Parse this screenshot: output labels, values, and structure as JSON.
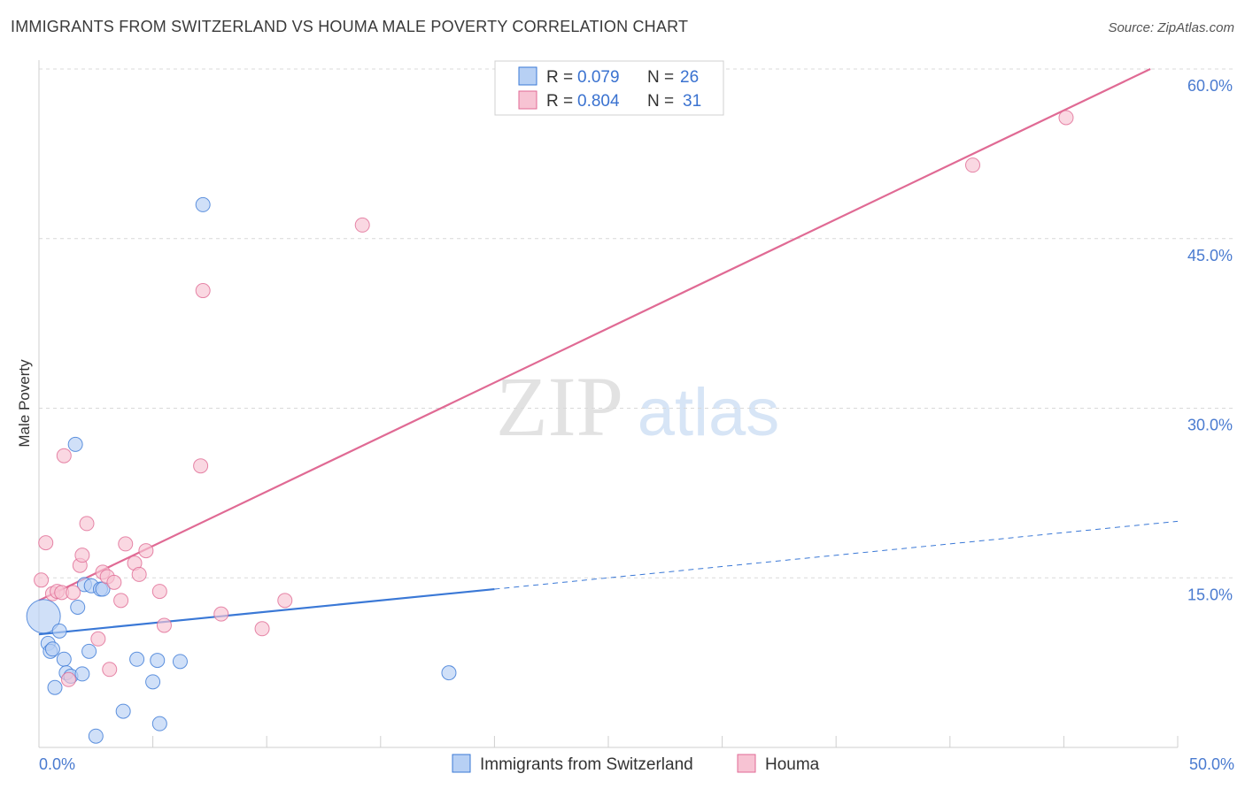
{
  "header": {
    "title": "IMMIGRANTS FROM SWITZERLAND VS HOUMA MALE POVERTY CORRELATION CHART",
    "source": "Source: ZipAtlas.com"
  },
  "watermark": {
    "zip": "ZIP",
    "atlas": "atlas"
  },
  "legend_top": {
    "entries": [
      {
        "r_label": "R = ",
        "r_value": "0.079",
        "n_label": "N = ",
        "n_value": "26"
      },
      {
        "r_label": "R = ",
        "r_value": "0.804",
        "n_label": "N = ",
        "n_value": "31"
      }
    ]
  },
  "colors": {
    "blue": "#3a78d6",
    "blue_fill": "#b7d0f4",
    "pink": "#e06a94",
    "pink_fill": "#f7c3d3",
    "grid": "#d8d8d8",
    "axis_text": "#4a7bd0"
  },
  "chart_data": {
    "type": "scatter",
    "title": "IMMIGRANTS FROM SWITZERLAND VS HOUMA MALE POVERTY CORRELATION CHART",
    "xlabel": "",
    "ylabel": "Male Poverty",
    "xlim": [
      0,
      50
    ],
    "ylim": [
      0,
      60
    ],
    "x_tick_labels": [
      "0.0%",
      "50.0%"
    ],
    "y_ticks": [
      15,
      30,
      45,
      60
    ],
    "y_tick_labels": [
      "15.0%",
      "30.0%",
      "45.0%",
      "60.0%"
    ],
    "series": [
      {
        "name": "Immigrants from Switzerland",
        "color": "#3a78d6",
        "points": [
          [
            0.2,
            11.6
          ],
          [
            0.4,
            9.2
          ],
          [
            0.5,
            8.5
          ],
          [
            0.6,
            8.7
          ],
          [
            0.7,
            5.3
          ],
          [
            0.9,
            10.3
          ],
          [
            1.1,
            7.8
          ],
          [
            1.2,
            6.6
          ],
          [
            1.4,
            6.3
          ],
          [
            1.7,
            12.4
          ],
          [
            1.6,
            26.8
          ],
          [
            1.9,
            6.5
          ],
          [
            2.0,
            14.4
          ],
          [
            2.2,
            8.5
          ],
          [
            2.3,
            14.3
          ],
          [
            2.5,
            1.0
          ],
          [
            2.7,
            14.0
          ],
          [
            2.8,
            14.0
          ],
          [
            3.7,
            3.2
          ],
          [
            4.3,
            7.8
          ],
          [
            5.0,
            5.8
          ],
          [
            5.2,
            7.7
          ],
          [
            5.3,
            2.1
          ],
          [
            6.2,
            7.6
          ],
          [
            7.2,
            48.0
          ],
          [
            18.0,
            6.6
          ]
        ],
        "trend": {
          "x0": 0,
          "y0": 10.0,
          "x_solid_end": 20,
          "x1": 50,
          "y1": 20.0
        }
      },
      {
        "name": "Houma",
        "color": "#e06a94",
        "points": [
          [
            0.1,
            14.8
          ],
          [
            0.3,
            18.1
          ],
          [
            0.6,
            13.6
          ],
          [
            0.8,
            13.8
          ],
          [
            1.0,
            13.7
          ],
          [
            1.1,
            25.8
          ],
          [
            1.3,
            6.0
          ],
          [
            1.5,
            13.7
          ],
          [
            1.8,
            16.1
          ],
          [
            1.9,
            17.0
          ],
          [
            2.1,
            19.8
          ],
          [
            2.6,
            9.6
          ],
          [
            2.8,
            15.5
          ],
          [
            3.0,
            15.1
          ],
          [
            3.1,
            6.9
          ],
          [
            3.3,
            14.6
          ],
          [
            3.6,
            13.0
          ],
          [
            3.8,
            18.0
          ],
          [
            4.2,
            16.3
          ],
          [
            4.4,
            15.3
          ],
          [
            4.7,
            17.4
          ],
          [
            5.3,
            13.8
          ],
          [
            5.5,
            10.8
          ],
          [
            7.1,
            24.9
          ],
          [
            7.2,
            40.4
          ],
          [
            8.0,
            11.8
          ],
          [
            9.8,
            10.5
          ],
          [
            10.8,
            13.0
          ],
          [
            14.2,
            46.2
          ],
          [
            41.0,
            51.5
          ],
          [
            45.1,
            55.7
          ]
        ],
        "trend": {
          "x0": 0,
          "y0": 13.0,
          "x1": 48.8,
          "y1": 60.0
        }
      }
    ]
  },
  "legend_bottom": {
    "items": [
      "Immigrants from Switzerland",
      "Houma"
    ]
  }
}
